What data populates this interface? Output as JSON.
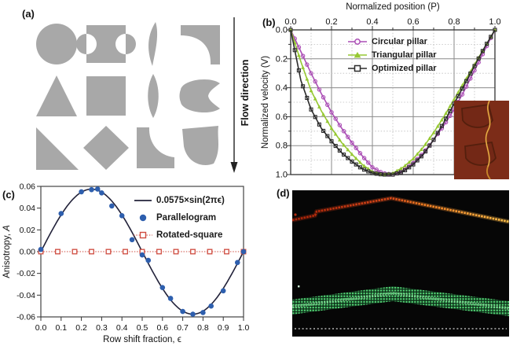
{
  "panel_a": {
    "label": "(a)",
    "flow_label": "Flow direction",
    "shape_color": "#a8a8a8",
    "shapes": [
      "circle",
      "i-beam",
      "curved-blade",
      "corner-bracket",
      "triangle",
      "square",
      "lens",
      "notched-blob",
      "right-triangle",
      "diamond",
      "concave-l",
      "curved-quad"
    ]
  },
  "panel_b": {
    "label": "(b)",
    "xlabel": "Normalized position (P)",
    "ylabel": "Normalized velocity (V)",
    "xticks": [
      "0.0",
      "0.2",
      "0.4",
      "0.6",
      "0.8",
      "1.0"
    ],
    "yticks": [
      "0.0",
      "0.2",
      "0.4",
      "0.6",
      "0.8",
      "1.0"
    ],
    "legend": [
      {
        "label": "Circular pillar",
        "color": "#ab4fb5",
        "marker": "circle"
      },
      {
        "label": "Triangular pillar",
        "color": "#96c832",
        "marker": "triangle"
      },
      {
        "label": "Optimized pillar",
        "color": "#2b2b2b",
        "marker": "square"
      }
    ],
    "inset": {
      "background": "#7c2c18",
      "outline": "#541f0d",
      "streak": "#d89a2e"
    }
  },
  "panel_c": {
    "label": "(c)",
    "ylabel_prefix": "Anisotropy, ",
    "ylabel_italic": "A",
    "xlabel": "Row shift fraction, ϵ",
    "yticks": [
      "0.06",
      "0.04",
      "0.02",
      "0.00",
      "-0.02",
      "-0.04",
      "-0.06"
    ],
    "xticks": [
      "0.0",
      "0.1",
      "0.2",
      "0.3",
      "0.4",
      "0.5",
      "0.6",
      "0.7",
      "0.8",
      "0.9",
      "1.0"
    ],
    "legend": [
      {
        "label": "0.0575×sin(2πϵ)",
        "color": "#22223a",
        "marker": "line"
      },
      {
        "label": "Parallelogram",
        "color": "#2e5fae",
        "marker": "dot"
      },
      {
        "label": "Rotated-square",
        "color": "#cf4c40",
        "marker": "open-square"
      }
    ]
  },
  "panel_d": {
    "label": "(d)",
    "colors": {
      "background": "#060606",
      "trace_red": "#b62b0e",
      "trace_orange": "#ffb640",
      "band_green": "#53d374",
      "baseline": "#d8d8d8"
    }
  },
  "chart_data": [
    {
      "panel": "b",
      "type": "line",
      "title": "Normalized position (P)",
      "xlabel": "Normalized position (P)",
      "ylabel": "Normalized velocity (V)",
      "xlim": [
        0,
        1
      ],
      "ylim": [
        0,
        1
      ],
      "y_axis_inverted": true,
      "grid": "major solid every 0.2, minor dotted every 0.1",
      "legend_position": "upper center inset",
      "x": [
        0,
        0.05,
        0.1,
        0.15,
        0.2,
        0.25,
        0.3,
        0.35,
        0.4,
        0.45,
        0.5,
        0.55,
        0.6,
        0.65,
        0.7,
        0.75,
        0.8,
        0.85,
        0.9,
        0.95,
        1.0
      ],
      "series": [
        {
          "name": "Circular pillar",
          "marker": "circle",
          "color": "#ab4fb5",
          "values": [
            0,
            0.15,
            0.3,
            0.44,
            0.57,
            0.68,
            0.78,
            0.87,
            0.95,
            0.99,
            1.0,
            0.97,
            0.92,
            0.85,
            0.76,
            0.66,
            0.55,
            0.42,
            0.28,
            0.14,
            0
          ]
        },
        {
          "name": "Triangular pillar",
          "marker": "triangle",
          "color": "#96c832",
          "values": [
            0,
            0.22,
            0.42,
            0.56,
            0.68,
            0.78,
            0.86,
            0.93,
            0.98,
            1.0,
            0.99,
            0.95,
            0.89,
            0.81,
            0.71,
            0.6,
            0.48,
            0.36,
            0.24,
            0.12,
            0
          ]
        },
        {
          "name": "Optimized pillar",
          "marker": "square",
          "color": "#2b2b2b",
          "values": [
            0,
            0.35,
            0.55,
            0.68,
            0.77,
            0.85,
            0.91,
            0.96,
            0.99,
            1.0,
            1.0,
            0.98,
            0.93,
            0.86,
            0.76,
            0.64,
            0.51,
            0.38,
            0.25,
            0.12,
            0
          ]
        }
      ]
    },
    {
      "panel": "c",
      "type": "scatter",
      "xlabel": "Row shift fraction, ϵ",
      "ylabel": "Anisotropy, A",
      "xlim": [
        0,
        1
      ],
      "ylim": [
        -0.06,
        0.06
      ],
      "grid": false,
      "legend_position": "upper right inset",
      "curve": {
        "name": "0.0575×sin(2πϵ)",
        "amplitude": 0.0575,
        "color": "#22223a"
      },
      "series": [
        {
          "name": "Parallelogram",
          "marker": "filled-circle",
          "color": "#2e5fae",
          "points": [
            [
              0.0,
              0.002
            ],
            [
              0.1,
              0.035
            ],
            [
              0.2,
              0.055
            ],
            [
              0.25,
              0.057
            ],
            [
              0.28,
              0.0575
            ],
            [
              0.3,
              0.054
            ],
            [
              0.35,
              0.042
            ],
            [
              0.4,
              0.033
            ],
            [
              0.45,
              0.011
            ],
            [
              0.5,
              -0.003
            ],
            [
              0.53,
              -0.008
            ],
            [
              0.6,
              -0.033
            ],
            [
              0.64,
              -0.043
            ],
            [
              0.7,
              -0.055
            ],
            [
              0.75,
              -0.0575
            ],
            [
              0.8,
              -0.056
            ],
            [
              0.84,
              -0.05
            ],
            [
              0.9,
              -0.036
            ],
            [
              0.97,
              -0.01
            ],
            [
              1.0,
              0.0
            ]
          ]
        },
        {
          "name": "Rotated-square",
          "marker": "open-square",
          "color": "#cf4c40",
          "points": [
            [
              0,
              0
            ],
            [
              0.0833,
              0
            ],
            [
              0.1667,
              0
            ],
            [
              0.25,
              0
            ],
            [
              0.3333,
              0
            ],
            [
              0.4167,
              0
            ],
            [
              0.5,
              0
            ],
            [
              0.5833,
              0
            ],
            [
              0.6667,
              0
            ],
            [
              0.75,
              0
            ],
            [
              0.8333,
              0
            ],
            [
              0.9167,
              0
            ],
            [
              1.0,
              0
            ]
          ]
        }
      ]
    }
  ]
}
